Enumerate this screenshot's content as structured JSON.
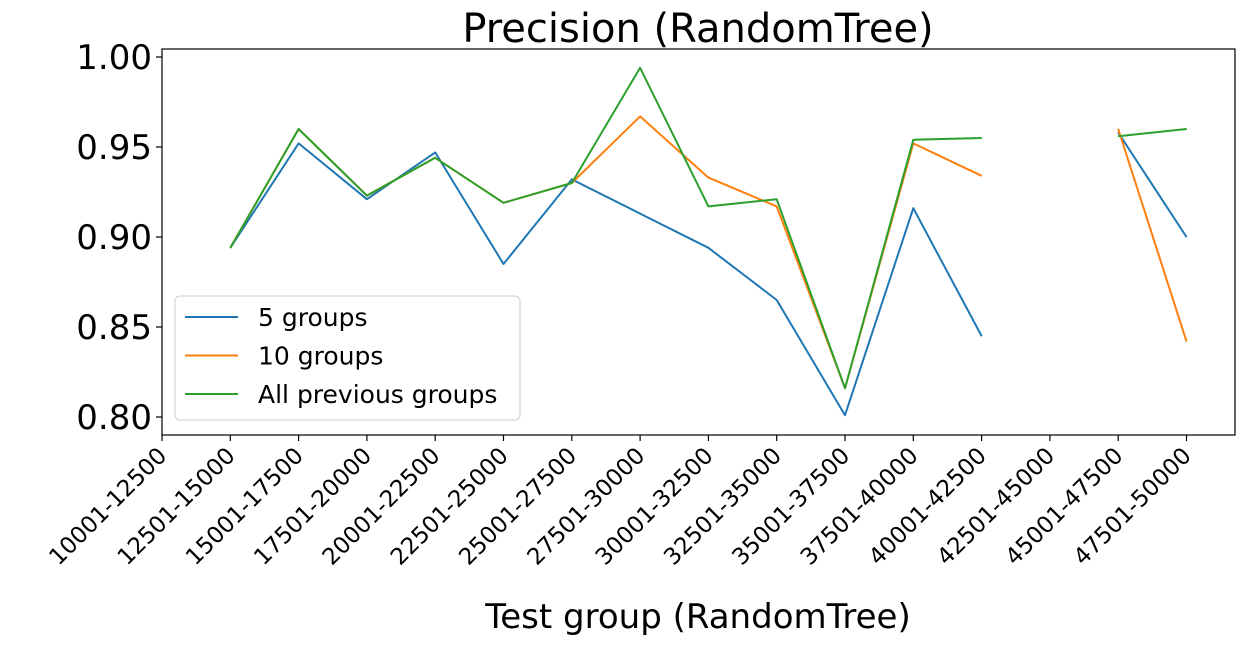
{
  "chart_data": {
    "type": "line",
    "title": "Precision (RandomTree)",
    "xlabel": "Test group (RandomTree)",
    "ylabel": "",
    "categories": [
      "10001-12500",
      "12501-15000",
      "15001-17500",
      "17501-20000",
      "20001-22500",
      "22501-25000",
      "25001-27500",
      "27501-30000",
      "30001-32500",
      "32501-35000",
      "35001-37500",
      "37501-40000",
      "40001-42500",
      "42501-45000",
      "45001-47500",
      "47501-50000"
    ],
    "ylim": [
      0.79,
      1.003
    ],
    "yticks": [
      0.8,
      0.85,
      0.9,
      0.95,
      1.0
    ],
    "ytick_labels": [
      "0.80",
      "0.85",
      "0.90",
      "0.95",
      "1.00"
    ],
    "grid": false,
    "legend_position": "lower-left",
    "series": [
      {
        "name": "5 groups",
        "color": "#1f77b4",
        "values": [
          null,
          0.894,
          0.952,
          0.921,
          0.947,
          0.885,
          0.932,
          0.913,
          0.894,
          0.865,
          0.801,
          0.916,
          0.845,
          null,
          0.958,
          0.9
        ]
      },
      {
        "name": "10 groups",
        "color": "#ff7f0e",
        "values": [
          null,
          0.894,
          0.96,
          0.923,
          0.944,
          0.919,
          0.93,
          0.967,
          0.933,
          0.917,
          0.816,
          0.952,
          0.934,
          null,
          0.96,
          0.842
        ]
      },
      {
        "name": "All previous groups",
        "color": "#2ca02c",
        "values": [
          null,
          0.894,
          0.96,
          0.923,
          0.944,
          0.919,
          0.93,
          0.994,
          0.917,
          0.921,
          0.816,
          0.954,
          0.955,
          null,
          0.956,
          0.96
        ]
      }
    ]
  }
}
